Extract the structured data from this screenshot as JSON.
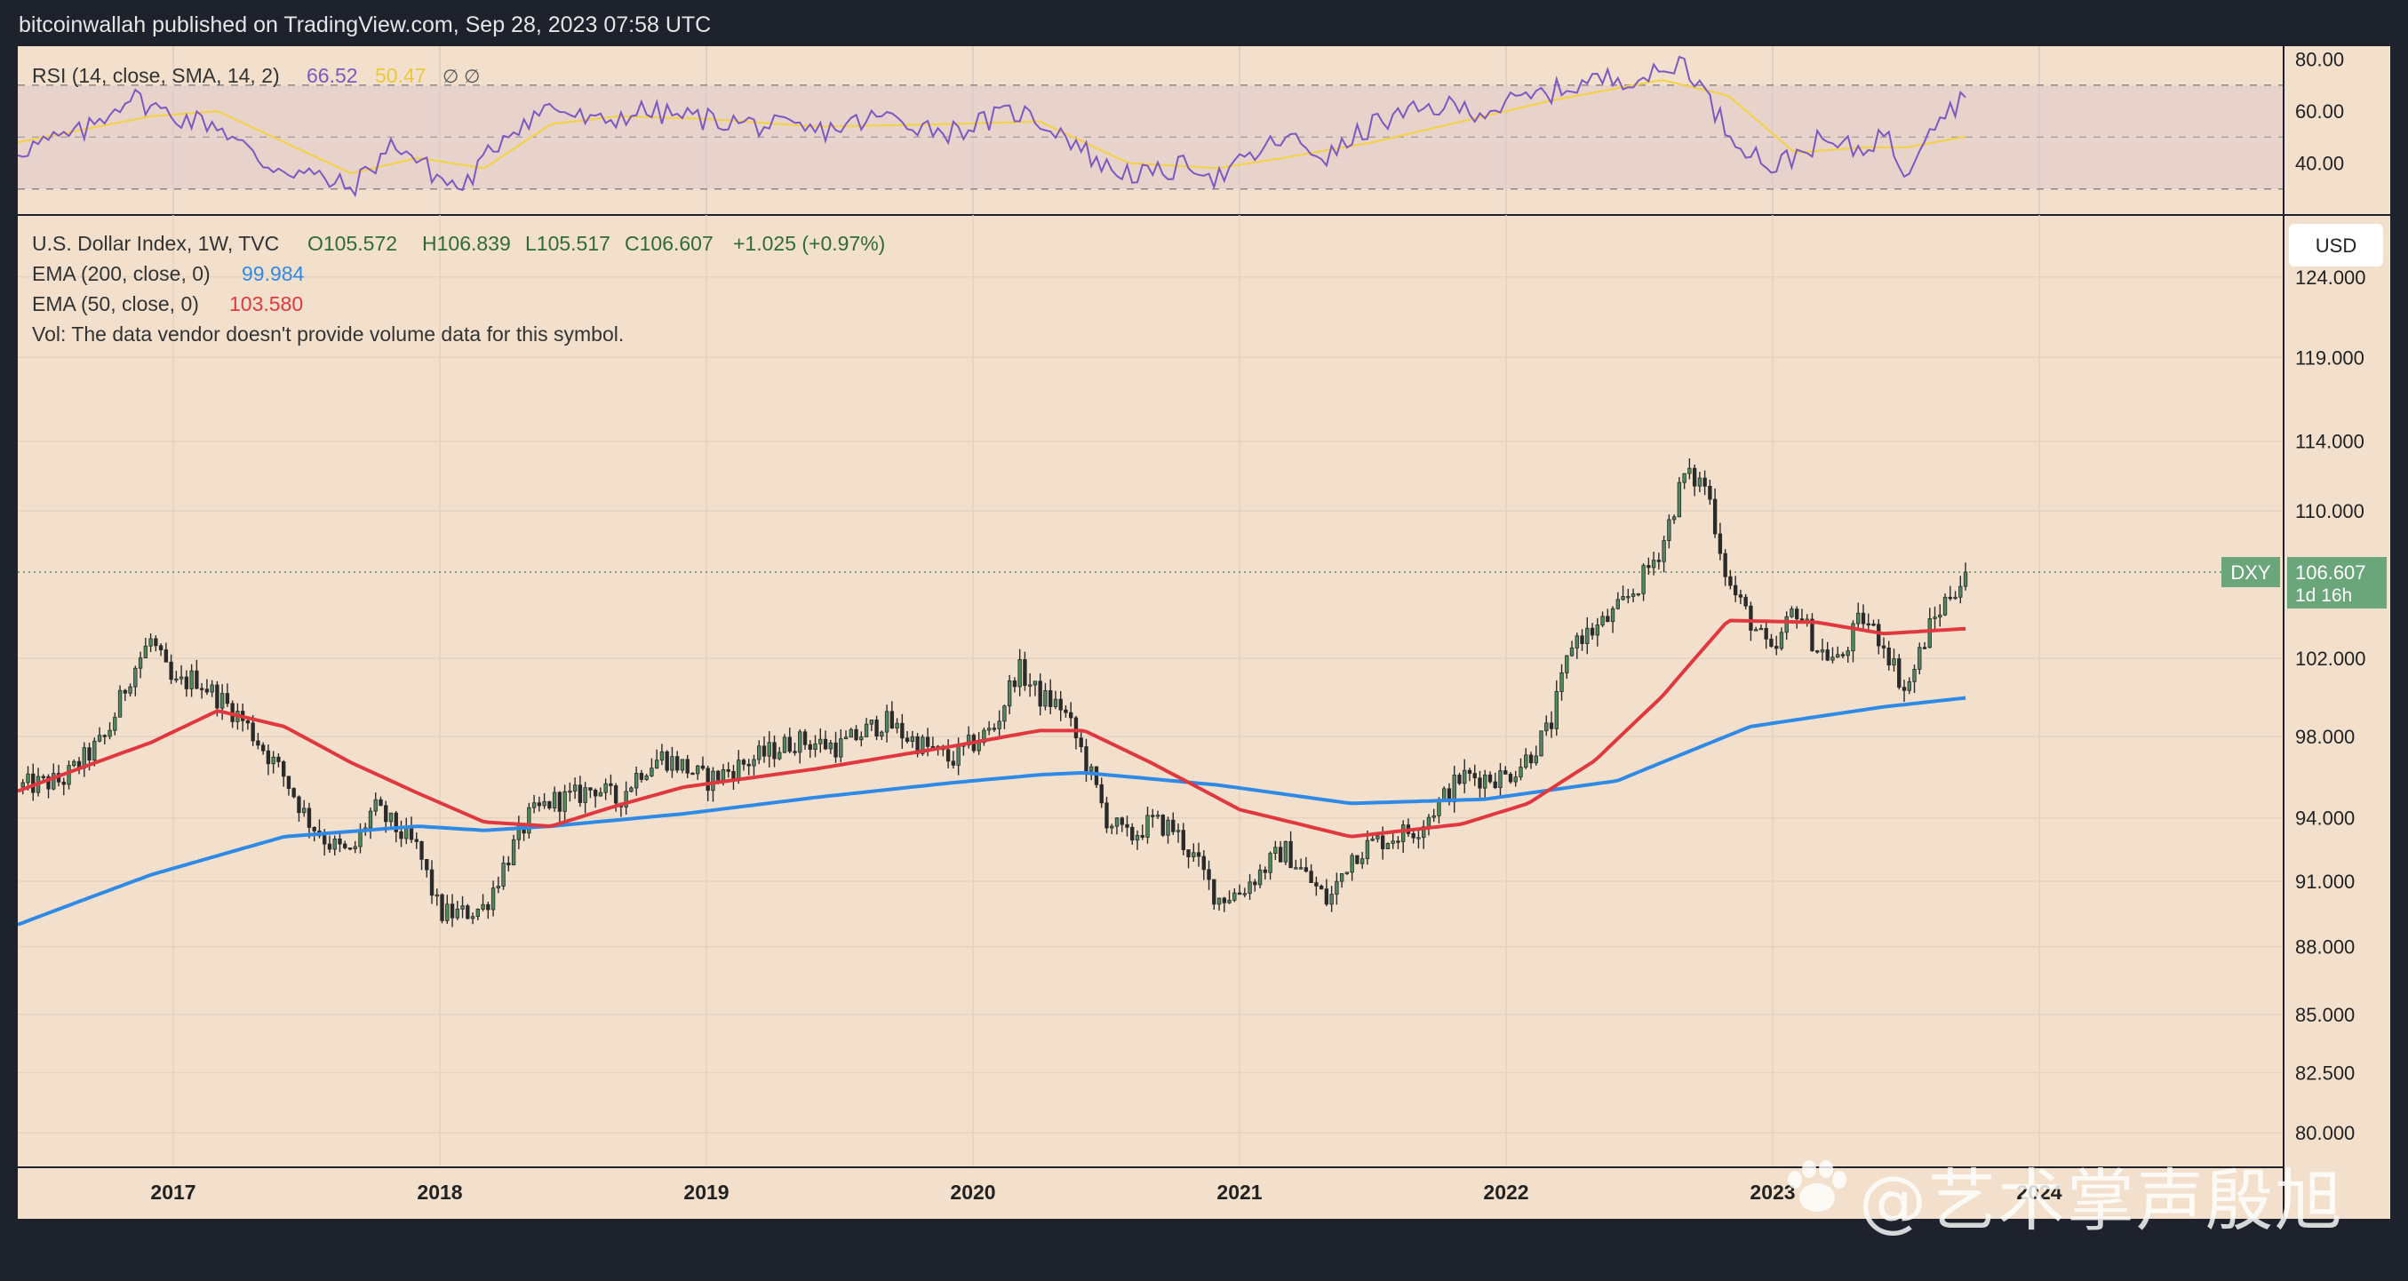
{
  "header": {
    "published_line": "bitcoinwallah published on TradingView.com, Sep 28, 2023 07:58 UTC"
  },
  "rsi_panel": {
    "title": "RSI (14, close, SMA, 14, 2)",
    "rsi_value": "66.52",
    "sma_value": "50.47",
    "extra_symbols": "∅  ∅",
    "axis_labels": [
      "80.00",
      "60.00",
      "40.00"
    ]
  },
  "main_panel": {
    "symbol_line": "U.S. Dollar Index, 1W, TVC",
    "ohlc": {
      "open": "O105.572",
      "high": "H106.839",
      "low": "L105.517",
      "close": "C106.607",
      "change": "+1.025 (+0.97%)"
    },
    "ema200_label": "EMA (200, close, 0)",
    "ema200_value": "99.984",
    "ema50_label": "EMA (50, close, 0)",
    "ema50_value": "103.580",
    "vol_note": "Vol: The data vendor doesn't provide volume data for this symbol.",
    "currency_button": "USD",
    "price_tag_symbol": "DXY",
    "price_tag_value": "106.607",
    "price_tag_countdown": "1d 16h"
  },
  "watermark": "@艺术掌声殷旭",
  "colors": {
    "background": "#f2e0cd",
    "up_candle": "#4f8a5e",
    "down_candle": "#2a2a2a",
    "ema50": "#e0383e",
    "ema200": "#2e8ae6",
    "rsi_line": "#7e57c2",
    "rsi_sma": "#f2d24b",
    "price_tag": "#6aa67a"
  },
  "chart_data": {
    "type": "candlestick",
    "title": "U.S. Dollar Index, 1W, TVC",
    "x_tick_labels": [
      "2017",
      "2018",
      "2019",
      "2020",
      "2021",
      "2022",
      "2023",
      "2024"
    ],
    "y_tick_labels": [
      "124.000",
      "119.000",
      "114.000",
      "110.000",
      "102.000",
      "98.000",
      "94.000",
      "91.000",
      "88.000",
      "85.000",
      "82.500",
      "80.000"
    ],
    "y_scale": "log",
    "ylim": [
      78.6,
      128
    ],
    "x_range": [
      "2016-06",
      "2024-12"
    ],
    "last_price": 106.607,
    "close_path": [
      [
        "2016-06",
        95.5
      ],
      [
        "2016-08",
        95.8
      ],
      [
        "2016-10",
        98.0
      ],
      [
        "2016-11",
        101.0
      ],
      [
        "2016-12",
        103.0
      ],
      [
        "2017-01",
        100.5
      ],
      [
        "2017-02",
        101.0
      ],
      [
        "2017-03",
        100.0
      ],
      [
        "2017-04",
        99.0
      ],
      [
        "2017-05",
        97.5
      ],
      [
        "2017-06",
        96.0
      ],
      [
        "2017-07",
        94.0
      ],
      [
        "2017-08",
        92.8
      ],
      [
        "2017-09",
        92.2
      ],
      [
        "2017-10",
        94.5
      ],
      [
        "2017-11",
        93.5
      ],
      [
        "2017-12",
        92.5
      ],
      [
        "2018-01",
        89.5
      ],
      [
        "2018-02",
        89.5
      ],
      [
        "2018-03",
        89.8
      ],
      [
        "2018-04",
        92.0
      ],
      [
        "2018-05",
        94.0
      ],
      [
        "2018-06",
        94.8
      ],
      [
        "2018-07",
        95.0
      ],
      [
        "2018-08",
        95.5
      ],
      [
        "2018-09",
        94.8
      ],
      [
        "2018-10",
        96.3
      ],
      [
        "2018-11",
        97.0
      ],
      [
        "2018-12",
        96.5
      ],
      [
        "2019-01",
        95.8
      ],
      [
        "2019-03",
        96.8
      ],
      [
        "2019-05",
        97.8
      ],
      [
        "2019-07",
        97.5
      ],
      [
        "2019-09",
        98.8
      ],
      [
        "2019-10",
        98.0
      ],
      [
        "2019-12",
        96.8
      ],
      [
        "2020-02",
        98.5
      ],
      [
        "2020-03",
        101.5
      ],
      [
        "2020-04",
        100.0
      ],
      [
        "2020-05",
        99.5
      ],
      [
        "2020-06",
        97.0
      ],
      [
        "2020-07",
        94.0
      ],
      [
        "2020-08",
        93.0
      ],
      [
        "2020-09",
        93.8
      ],
      [
        "2020-10",
        93.5
      ],
      [
        "2020-11",
        92.0
      ],
      [
        "2020-12",
        90.2
      ],
      [
        "2021-01",
        90.5
      ],
      [
        "2021-03",
        92.5
      ],
      [
        "2021-05",
        90.0
      ],
      [
        "2021-06",
        92.2
      ],
      [
        "2021-07",
        92.8
      ],
      [
        "2021-09",
        93.5
      ],
      [
        "2021-11",
        96.0
      ],
      [
        "2022-01",
        96.0
      ],
      [
        "2022-02",
        97.0
      ],
      [
        "2022-03",
        98.5
      ],
      [
        "2022-04",
        103.0
      ],
      [
        "2022-05",
        103.5
      ],
      [
        "2022-06",
        104.5
      ],
      [
        "2022-07",
        106.0
      ],
      [
        "2022-08",
        108.0
      ],
      [
        "2022-09",
        112.0
      ],
      [
        "2022-10",
        111.5
      ],
      [
        "2022-11",
        106.0
      ],
      [
        "2022-12",
        104.0
      ],
      [
        "2023-01",
        102.0
      ],
      [
        "2023-02",
        104.8
      ],
      [
        "2023-03",
        102.5
      ],
      [
        "2023-04",
        101.8
      ],
      [
        "2023-05",
        104.2
      ],
      [
        "2023-06",
        102.8
      ],
      [
        "2023-07",
        100.2
      ],
      [
        "2023-08",
        103.5
      ],
      [
        "2023-09",
        105.5
      ],
      [
        "2023-09-28",
        106.607
      ]
    ],
    "series": [
      {
        "name": "EMA (50, close, 0)",
        "points": [
          [
            "2016-06",
            95.3
          ],
          [
            "2016-12",
            97.7
          ],
          [
            "2017-03",
            99.3
          ],
          [
            "2017-06",
            98.5
          ],
          [
            "2017-09",
            96.7
          ],
          [
            "2017-12",
            95.2
          ],
          [
            "2018-03",
            93.8
          ],
          [
            "2018-06",
            93.6
          ],
          [
            "2018-09",
            94.6
          ],
          [
            "2018-12",
            95.5
          ],
          [
            "2019-06",
            96.4
          ],
          [
            "2019-12",
            97.5
          ],
          [
            "2020-04",
            98.3
          ],
          [
            "2020-06",
            98.3
          ],
          [
            "2020-09",
            96.7
          ],
          [
            "2021-01",
            94.4
          ],
          [
            "2021-06",
            93.1
          ],
          [
            "2021-11",
            93.7
          ],
          [
            "2022-02",
            94.7
          ],
          [
            "2022-05",
            96.8
          ],
          [
            "2022-08",
            100.0
          ],
          [
            "2022-11",
            104.0
          ],
          [
            "2023-03",
            103.9
          ],
          [
            "2023-06",
            103.3
          ],
          [
            "2023-09-28",
            103.58
          ]
        ]
      },
      {
        "name": "EMA (200, close, 0)",
        "points": [
          [
            "2016-06",
            89.0
          ],
          [
            "2016-12",
            91.3
          ],
          [
            "2017-06",
            93.1
          ],
          [
            "2017-12",
            93.6
          ],
          [
            "2018-03",
            93.4
          ],
          [
            "2018-06",
            93.6
          ],
          [
            "2018-12",
            94.2
          ],
          [
            "2019-06",
            95.0
          ],
          [
            "2019-12",
            95.7
          ],
          [
            "2020-04",
            96.1
          ],
          [
            "2020-06",
            96.2
          ],
          [
            "2020-12",
            95.6
          ],
          [
            "2021-06",
            94.7
          ],
          [
            "2021-12",
            94.9
          ],
          [
            "2022-06",
            95.8
          ],
          [
            "2022-12",
            98.5
          ],
          [
            "2023-06",
            99.5
          ],
          [
            "2023-09-28",
            99.984
          ]
        ]
      }
    ],
    "rsi": {
      "name": "RSI (14, close, SMA, 14, 2)",
      "ylim": [
        20,
        85
      ],
      "bands": [
        30,
        50,
        70
      ],
      "path": [
        [
          "2016-06",
          45
        ],
        [
          "2016-09",
          52
        ],
        [
          "2016-11",
          66
        ],
        [
          "2017-01",
          58
        ],
        [
          "2017-03",
          55
        ],
        [
          "2017-05",
          40
        ],
        [
          "2017-07",
          36
        ],
        [
          "2017-09",
          30
        ],
        [
          "2017-11",
          48
        ],
        [
          "2018-01",
          34
        ],
        [
          "2018-02",
          30
        ],
        [
          "2018-04",
          52
        ],
        [
          "2018-06",
          62
        ],
        [
          "2018-08",
          55
        ],
        [
          "2018-10",
          60
        ],
        [
          "2018-12",
          58
        ],
        [
          "2019-03",
          55
        ],
        [
          "2019-06",
          52
        ],
        [
          "2019-09",
          58
        ],
        [
          "2019-12",
          52
        ],
        [
          "2020-03",
          60
        ],
        [
          "2020-05",
          52
        ],
        [
          "2020-07",
          38
        ],
        [
          "2020-09",
          35
        ],
        [
          "2020-11",
          40
        ],
        [
          "2020-12",
          34
        ],
        [
          "2021-03",
          50
        ],
        [
          "2021-05",
          42
        ],
        [
          "2021-07",
          55
        ],
        [
          "2021-10",
          62
        ],
        [
          "2021-12",
          60
        ],
        [
          "2022-02",
          65
        ],
        [
          "2022-05",
          72
        ],
        [
          "2022-08",
          74
        ],
        [
          "2022-09",
          80
        ],
        [
          "2022-11",
          52
        ],
        [
          "2023-01",
          38
        ],
        [
          "2023-03",
          48
        ],
        [
          "2023-05",
          45
        ],
        [
          "2023-06",
          52
        ],
        [
          "2023-07",
          36
        ],
        [
          "2023-08",
          55
        ],
        [
          "2023-09-28",
          66.52
        ]
      ],
      "sma_path": [
        [
          "2016-06",
          48
        ],
        [
          "2016-12",
          58
        ],
        [
          "2017-03",
          60
        ],
        [
          "2017-06",
          48
        ],
        [
          "2017-09",
          36
        ],
        [
          "2017-12",
          42
        ],
        [
          "2018-03",
          38
        ],
        [
          "2018-06",
          55
        ],
        [
          "2018-09",
          58
        ],
        [
          "2019-01",
          57
        ],
        [
          "2019-06",
          54
        ],
        [
          "2019-12",
          55
        ],
        [
          "2020-04",
          56
        ],
        [
          "2020-08",
          40
        ],
        [
          "2020-12",
          38
        ],
        [
          "2021-03",
          42
        ],
        [
          "2021-07",
          48
        ],
        [
          "2021-11",
          56
        ],
        [
          "2022-03",
          64
        ],
        [
          "2022-08",
          72
        ],
        [
          "2022-11",
          66
        ],
        [
          "2023-02",
          44
        ],
        [
          "2023-05",
          46
        ],
        [
          "2023-07",
          46
        ],
        [
          "2023-09-28",
          50.47
        ]
      ]
    }
  }
}
